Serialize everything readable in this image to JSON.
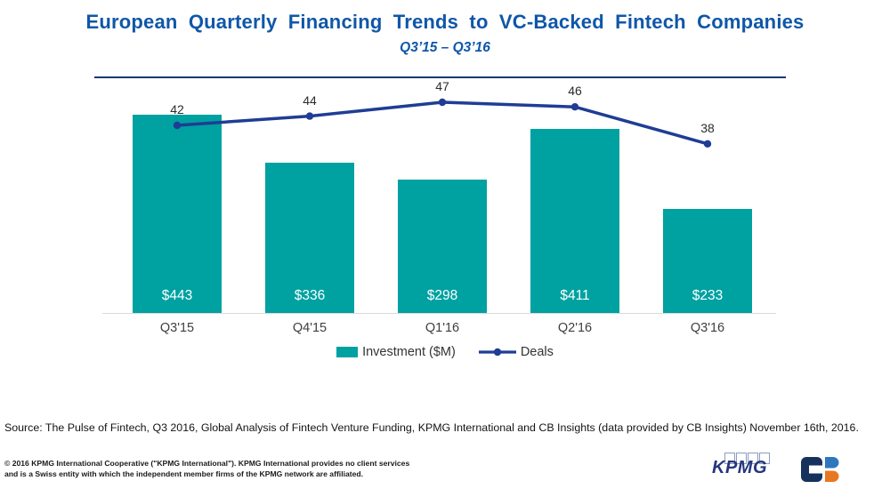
{
  "header": {
    "title": "European Quarterly Financing Trends to VC-Backed Fintech Companies",
    "subtitle": "Q3’15 – Q3’16"
  },
  "chart_data": {
    "type": "bar+line combo",
    "categories": [
      "Q3'15",
      "Q4'15",
      "Q1'16",
      "Q2'16",
      "Q3'16"
    ],
    "series": [
      {
        "name": "Investment ($M)",
        "type": "bar",
        "values": [
          443,
          336,
          298,
          411,
          233
        ],
        "labels": [
          "$443",
          "$336",
          "$298",
          "$411",
          "$233"
        ],
        "color": "#00A1A1"
      },
      {
        "name": "Deals",
        "type": "line",
        "values": [
          42,
          44,
          47,
          46,
          38
        ],
        "color": "#1F3D94"
      }
    ],
    "title": "European Quarterly Financing Trends to VC-Backed Fintech Companies",
    "subtitle": "Q3’15 – Q3’16",
    "xlabel": "",
    "ylabel": "",
    "y_axis_visible": false,
    "grid": false,
    "legend_position": "bottom",
    "bar_label_position": "inside-bottom",
    "line_label_position": "above-point"
  },
  "legend": {
    "investment_label": "Investment ($M)",
    "deals_label": "Deals"
  },
  "source": "Source: The Pulse of Fintech, Q3 2016, Global Analysis of Fintech Venture Funding, KPMG International and CB Insights (data provided by CB Insights) November 16th, 2016.",
  "footer": {
    "line1": "© 2016 KPMG International Cooperative (\"KPMG International\"). KPMG International provides no client services",
    "line2": "and is a Swiss entity with which the independent  member  firms of the KPMG network  are affiliated.",
    "kpmg_logo_text": "KPMG"
  },
  "colors": {
    "title_blue": "#0F57A8",
    "divider_navy": "#18386E",
    "bar_teal": "#00A1A1",
    "line_navy": "#1F3D94",
    "axis_gray": "#D9D9D9",
    "cb_logo_navy": "#16325C",
    "cb_logo_blue": "#2E77BE",
    "cb_logo_orange": "#E87722",
    "kpmg_logo_navy": "#26367F"
  }
}
